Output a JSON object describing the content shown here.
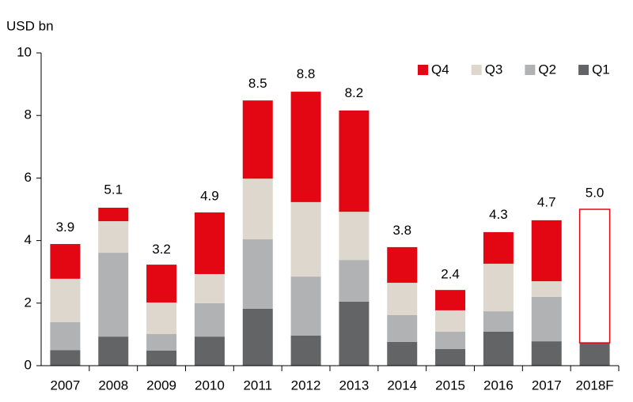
{
  "chart_data": {
    "type": "stacked_bar",
    "y_axis_label": "USD bn",
    "categories": [
      "2007",
      "2008",
      "2009",
      "2010",
      "2011",
      "2012",
      "2013",
      "2014",
      "2015",
      "2016",
      "2017",
      "2018F"
    ],
    "series": [
      {
        "name": "Q1",
        "color": "#636466",
        "values": [
          0.5,
          0.93,
          0.48,
          0.93,
          1.82,
          0.96,
          2.05,
          0.76,
          0.53,
          1.09,
          0.78,
          0.73
        ]
      },
      {
        "name": "Q2",
        "color": "#b1b2b4",
        "values": [
          0.89,
          2.68,
          0.53,
          1.07,
          2.22,
          1.89,
          1.33,
          0.86,
          0.56,
          0.65,
          1.42,
          null
        ]
      },
      {
        "name": "Q3",
        "color": "#ddd7cd",
        "values": [
          1.39,
          1.01,
          1.01,
          0.93,
          1.94,
          2.38,
          1.54,
          1.03,
          0.68,
          1.52,
          0.5,
          null
        ]
      },
      {
        "name": "Q4",
        "color": "#e30613",
        "values": [
          1.11,
          0.43,
          1.21,
          1.97,
          2.5,
          3.53,
          3.24,
          1.14,
          0.65,
          1.01,
          1.95,
          4.27
        ]
      }
    ],
    "outline_categories": [
      "2018F"
    ],
    "totals": [
      3.9,
      5.1,
      3.2,
      4.9,
      8.5,
      8.8,
      8.2,
      3.8,
      2.4,
      4.3,
      4.7,
      5.0
    ],
    "totals_labels": [
      "3.9",
      "5.1",
      "3.2",
      "4.9",
      "8.5",
      "8.8",
      "8.2",
      "3.8",
      "2.4",
      "4.3",
      "4.7",
      "5.0"
    ],
    "ylim": [
      0,
      10
    ],
    "yticks": [
      0,
      2,
      4,
      6,
      8,
      10
    ],
    "legend": "top-right",
    "legend_order": "reversed"
  }
}
